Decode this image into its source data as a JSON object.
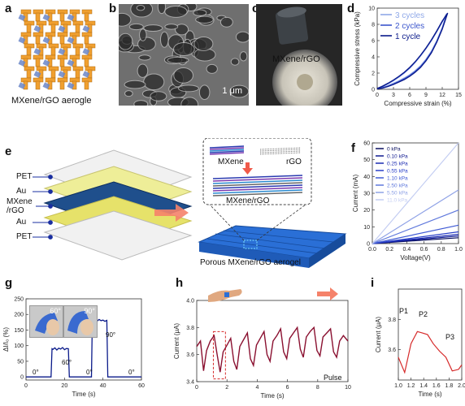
{
  "panels": {
    "a": {
      "letter": "a",
      "caption": "MXene/rGO aerogle"
    },
    "b": {
      "letter": "b",
      "scale_label": "1 μm"
    },
    "c": {
      "letter": "c",
      "label": "MXene/rGO"
    },
    "d": {
      "letter": "d"
    },
    "e": {
      "letter": "e",
      "layer_labels": [
        "PET",
        "Au",
        "MXene\n/rGO",
        "Au",
        "PET"
      ],
      "inset_labels": {
        "mxene": "MXene",
        "rgo": "rGO",
        "combined": "MXene/rGO"
      },
      "caption": "Porous MXene/rGO aerogel"
    },
    "f": {
      "letter": "f"
    },
    "g": {
      "letter": "g",
      "inset_labels": [
        "60°",
        "90°"
      ],
      "annotations": [
        "0°",
        "60°",
        "0°",
        "90°",
        "0°"
      ]
    },
    "h": {
      "letter": "h",
      "annotation": "Pulse"
    },
    "i": {
      "letter": "i",
      "peak_labels": [
        "P1",
        "P2",
        "P3"
      ]
    }
  },
  "colors": {
    "dark_blue": "#1a2fa0",
    "mxene_blue": "#1e4f8c",
    "gold": "#e8e46a",
    "orange": "#f0a030",
    "maroon": "#8a1030",
    "red": "#d62a2a",
    "arrow": "#f5826a",
    "aerogel_blue": "#2a6fd6"
  },
  "chart_data": [
    {
      "id": "d",
      "type": "line",
      "xlabel": "Compressive strain (%)",
      "ylabel": "Compressive stress (kPa)",
      "xlim": [
        0,
        15
      ],
      "ylim": [
        0,
        10
      ],
      "xticks": [
        0,
        3,
        6,
        9,
        12,
        15
      ],
      "yticks": [
        0,
        2,
        4,
        6,
        8,
        10
      ],
      "legend_position": "top-left",
      "series": [
        {
          "name": "3 cycles",
          "color": "#8fa8e8",
          "load": [
            [
              0,
              0.1
            ],
            [
              1,
              0.35
            ],
            [
              2,
              0.7
            ],
            [
              3,
              1.05
            ],
            [
              4,
              1.5
            ],
            [
              5,
              2.0
            ],
            [
              6,
              2.6
            ],
            [
              7,
              3.3
            ],
            [
              8,
              4.1
            ],
            [
              9,
              5.0
            ],
            [
              10,
              6.0
            ],
            [
              11,
              7.1
            ],
            [
              12,
              8.3
            ],
            [
              12.8,
              9.3
            ]
          ],
          "unload": [
            [
              12.8,
              9.3
            ],
            [
              12,
              7.6
            ],
            [
              11,
              6.0
            ],
            [
              10,
              4.7
            ],
            [
              9,
              3.7
            ],
            [
              8,
              2.9
            ],
            [
              7,
              2.3
            ],
            [
              6,
              1.8
            ],
            [
              5,
              1.4
            ],
            [
              4,
              1.05
            ],
            [
              3,
              0.75
            ],
            [
              2,
              0.45
            ],
            [
              1,
              0.2
            ],
            [
              0,
              0.05
            ]
          ]
        },
        {
          "name": "2 cycles",
          "color": "#3a55cc",
          "load": [
            [
              0,
              0.1
            ],
            [
              1,
              0.35
            ],
            [
              2,
              0.7
            ],
            [
              3,
              1.1
            ],
            [
              4,
              1.55
            ],
            [
              5,
              2.05
            ],
            [
              6,
              2.65
            ],
            [
              7,
              3.35
            ],
            [
              8,
              4.15
            ],
            [
              9,
              5.05
            ],
            [
              10,
              6.05
            ],
            [
              11,
              7.15
            ],
            [
              12,
              8.35
            ],
            [
              12.9,
              9.3
            ]
          ],
          "unload": [
            [
              12.9,
              9.3
            ],
            [
              12,
              7.5
            ],
            [
              11,
              5.9
            ],
            [
              10,
              4.6
            ],
            [
              9,
              3.6
            ],
            [
              8,
              2.8
            ],
            [
              7,
              2.2
            ],
            [
              6,
              1.7
            ],
            [
              5,
              1.3
            ],
            [
              4,
              0.95
            ],
            [
              3,
              0.65
            ],
            [
              2,
              0.4
            ],
            [
              1,
              0.2
            ],
            [
              0,
              0.05
            ]
          ]
        },
        {
          "name": "1 cycle",
          "color": "#0a1a8a",
          "load": [
            [
              0,
              0.1
            ],
            [
              1,
              0.4
            ],
            [
              2,
              0.75
            ],
            [
              3,
              1.15
            ],
            [
              4,
              1.6
            ],
            [
              5,
              2.1
            ],
            [
              6,
              2.7
            ],
            [
              7,
              3.4
            ],
            [
              8,
              4.2
            ],
            [
              9,
              5.1
            ],
            [
              10,
              6.1
            ],
            [
              11,
              7.2
            ],
            [
              12,
              8.4
            ],
            [
              13,
              9.4
            ]
          ],
          "unload": [
            [
              13,
              9.4
            ],
            [
              12,
              7.4
            ],
            [
              11,
              5.8
            ],
            [
              10,
              4.5
            ],
            [
              9,
              3.5
            ],
            [
              8,
              2.7
            ],
            [
              7,
              2.1
            ],
            [
              6,
              1.6
            ],
            [
              5,
              1.2
            ],
            [
              4,
              0.9
            ],
            [
              3,
              0.6
            ],
            [
              2,
              0.35
            ],
            [
              1,
              0.15
            ],
            [
              0,
              0.05
            ]
          ]
        }
      ]
    },
    {
      "id": "f",
      "type": "line",
      "xlabel": "Voltage(V)",
      "ylabel": "Current (mA)",
      "xlim": [
        0,
        1.0
      ],
      "ylim": [
        0,
        60
      ],
      "xticks": [
        0.0,
        0.2,
        0.4,
        0.6,
        0.8,
        1.0
      ],
      "yticks": [
        0,
        10,
        20,
        30,
        40,
        50,
        60
      ],
      "legend_position": "top-left",
      "x": [
        0,
        1.0
      ],
      "series": [
        {
          "name": "0    kPa",
          "color": "#0a1060",
          "values": [
            0,
            3.5
          ]
        },
        {
          "name": "0.10 kPa",
          "color": "#101a90",
          "values": [
            0,
            4.5
          ]
        },
        {
          "name": "0.25 kPa",
          "color": "#1a2ab0",
          "values": [
            0,
            5.5
          ]
        },
        {
          "name": "0.55 kPa",
          "color": "#2a40c8",
          "values": [
            0,
            7.0
          ]
        },
        {
          "name": "1.10 kPa",
          "color": "#3f5ad4",
          "values": [
            0,
            11.0
          ]
        },
        {
          "name": "2.50 kPa",
          "color": "#5f78dc",
          "values": [
            0,
            20.0
          ]
        },
        {
          "name": "5.50 kPa",
          "color": "#8fa2e6",
          "values": [
            0,
            32.0
          ]
        },
        {
          "name": "11.0 kPa",
          "color": "#c3cdf2",
          "values": [
            0,
            60.0
          ]
        }
      ]
    },
    {
      "id": "g",
      "type": "line",
      "xlabel": "Time (s)",
      "ylabel": "ΔI/I₀ (%)",
      "xlim": [
        0,
        60
      ],
      "ylim": [
        -10,
        250
      ],
      "xticks": [
        0,
        20,
        40,
        60
      ],
      "yticks": [
        0,
        50,
        100,
        150,
        200,
        250
      ],
      "series": [
        {
          "name": "",
          "color": "#0a1a8a",
          "points": [
            [
              0,
              0
            ],
            [
              13,
              0
            ],
            [
              13.5,
              90
            ],
            [
              14,
              88
            ],
            [
              15,
              93
            ],
            [
              16,
              86
            ],
            [
              17,
              92
            ],
            [
              18,
              89
            ],
            [
              19,
              94
            ],
            [
              20,
              87
            ],
            [
              21,
              91
            ],
            [
              22,
              90
            ],
            [
              22.5,
              0
            ],
            [
              34,
              0
            ],
            [
              34.5,
              185
            ],
            [
              35,
              178
            ],
            [
              36,
              183
            ],
            [
              37,
              179
            ],
            [
              38,
              184
            ],
            [
              39,
              180
            ],
            [
              40,
              182
            ],
            [
              41,
              178
            ],
            [
              42,
              181
            ],
            [
              42.5,
              0
            ],
            [
              60,
              0
            ]
          ]
        }
      ]
    },
    {
      "id": "h",
      "type": "line",
      "xlabel": "Time (s)",
      "ylabel": "Current (μA)",
      "xlim": [
        0,
        10
      ],
      "ylim": [
        3.4,
        4.0
      ],
      "xticks": [
        0,
        2,
        4,
        6,
        8,
        10
      ],
      "yticks": [
        3.4,
        3.6,
        3.8,
        4.0
      ],
      "highlight_x": [
        1.1,
        1.9
      ],
      "series": [
        {
          "name": "",
          "color": "#8a1030",
          "points": [
            [
              0,
              3.66
            ],
            [
              0.25,
              3.7
            ],
            [
              0.45,
              3.48
            ],
            [
              0.65,
              3.63
            ],
            [
              0.9,
              3.7
            ],
            [
              1.15,
              3.74
            ],
            [
              1.35,
              3.6
            ],
            [
              1.55,
              3.47
            ],
            [
              1.75,
              3.62
            ],
            [
              1.95,
              3.66
            ],
            [
              2.25,
              3.72
            ],
            [
              2.45,
              3.55
            ],
            [
              2.65,
              3.49
            ],
            [
              2.85,
              3.66
            ],
            [
              3.05,
              3.7
            ],
            [
              3.35,
              3.76
            ],
            [
              3.55,
              3.57
            ],
            [
              3.75,
              3.52
            ],
            [
              3.95,
              3.67
            ],
            [
              4.2,
              3.72
            ],
            [
              4.45,
              3.77
            ],
            [
              4.65,
              3.6
            ],
            [
              4.85,
              3.55
            ],
            [
              5.05,
              3.7
            ],
            [
              5.3,
              3.74
            ],
            [
              5.55,
              3.79
            ],
            [
              5.75,
              3.62
            ],
            [
              5.95,
              3.57
            ],
            [
              6.15,
              3.72
            ],
            [
              6.4,
              3.76
            ],
            [
              6.65,
              3.8
            ],
            [
              6.85,
              3.64
            ],
            [
              7.05,
              3.58
            ],
            [
              7.25,
              3.73
            ],
            [
              7.5,
              3.77
            ],
            [
              7.75,
              3.8
            ],
            [
              7.95,
              3.63
            ],
            [
              8.15,
              3.59
            ],
            [
              8.35,
              3.73
            ],
            [
              8.6,
              3.76
            ],
            [
              8.85,
              3.79
            ],
            [
              9.05,
              3.62
            ],
            [
              9.25,
              3.58
            ],
            [
              9.45,
              3.7
            ],
            [
              9.7,
              3.74
            ],
            [
              10,
              3.7
            ]
          ]
        }
      ]
    },
    {
      "id": "i",
      "type": "line",
      "xlabel": "Time (s)",
      "ylabel": "Current (μA)",
      "xlim": [
        1.0,
        2.0
      ],
      "ylim": [
        3.4,
        4.0
      ],
      "xticks": [
        1.0,
        1.2,
        1.4,
        1.6,
        1.8,
        2.0
      ],
      "yticks": [
        3.6,
        3.8
      ],
      "series": [
        {
          "name": "",
          "color": "#d62a2a",
          "points": [
            [
              1.0,
              3.55
            ],
            [
              1.1,
              3.45
            ],
            [
              1.2,
              3.64
            ],
            [
              1.3,
              3.72
            ],
            [
              1.38,
              3.71
            ],
            [
              1.46,
              3.7
            ],
            [
              1.55,
              3.64
            ],
            [
              1.65,
              3.59
            ],
            [
              1.75,
              3.55
            ],
            [
              1.85,
              3.46
            ],
            [
              1.95,
              3.47
            ],
            [
              2.0,
              3.5
            ]
          ]
        }
      ]
    }
  ]
}
